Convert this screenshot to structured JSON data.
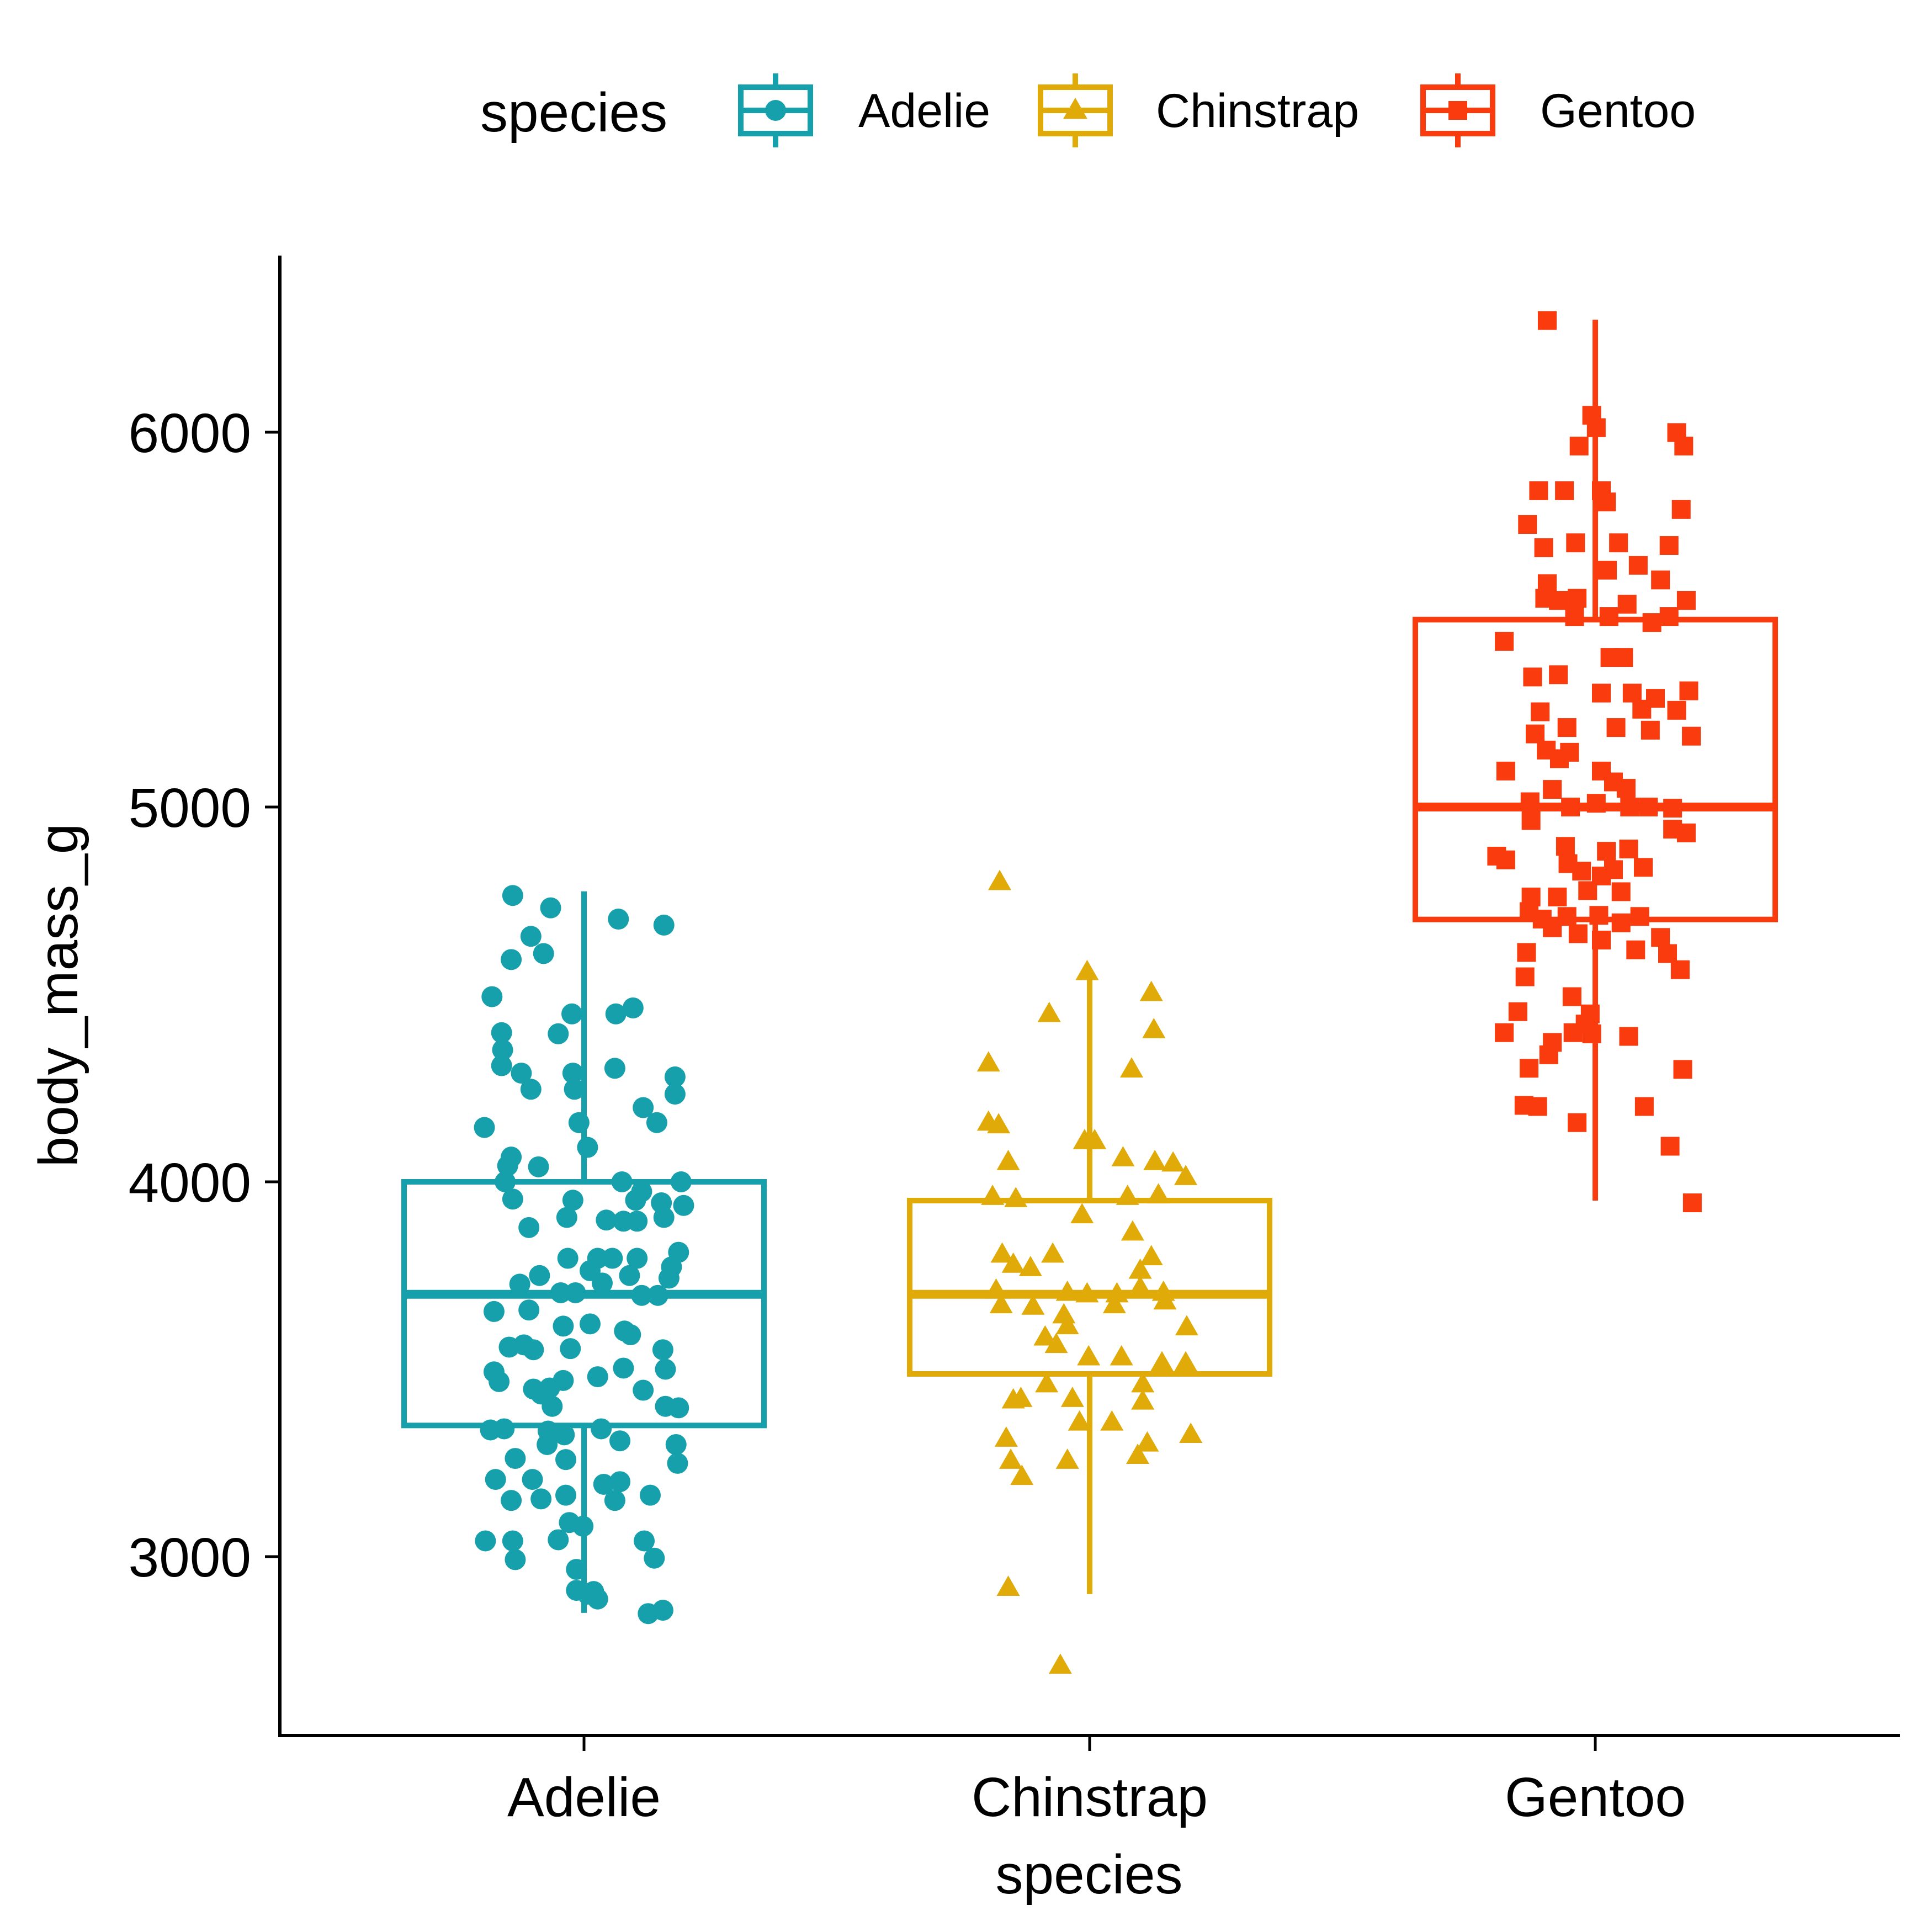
{
  "chart_data": {
    "type": "box+jitter",
    "title": "",
    "xlabel": "species",
    "ylabel": "body_mass_g",
    "ylim": [
      2550,
      6500
    ],
    "yticks": [
      3000,
      4000,
      5000,
      6000
    ],
    "ytick_labels": [
      "3000",
      "4000",
      "5000",
      "6000"
    ],
    "categories": [
      "Adelie",
      "Chinstrap",
      "Gentoo"
    ],
    "grid": false,
    "legend": {
      "title": "species",
      "position": "top",
      "entries": [
        "Adelie",
        "Chinstrap",
        "Gentoo"
      ]
    },
    "series": [
      {
        "name": "Adelie",
        "color": "#16A0AC",
        "shape": "circle",
        "box": {
          "lower_whisker": 2850,
          "q1": 3350,
          "median": 3700,
          "q3": 4000,
          "upper_whisker": 4775
        },
        "points": [
          [
            -0.141,
            4764
          ],
          [
            -0.066,
            4731
          ],
          [
            0.068,
            4701
          ],
          [
            0.158,
            4685
          ],
          [
            -0.105,
            4655
          ],
          [
            -0.08,
            4609
          ],
          [
            -0.144,
            4593
          ],
          [
            -0.182,
            4494
          ],
          [
            0.097,
            4464
          ],
          [
            0.063,
            4448
          ],
          [
            -0.024,
            4448
          ],
          [
            -0.163,
            4398
          ],
          [
            -0.051,
            4395
          ],
          [
            -0.161,
            4352
          ],
          [
            -0.163,
            4310
          ],
          [
            -0.124,
            4290
          ],
          [
            0.061,
            4303
          ],
          [
            -0.022,
            4290
          ],
          [
            0.18,
            4280
          ],
          [
            -0.105,
            4247
          ],
          [
            -0.019,
            4247
          ],
          [
            0.18,
            4234
          ],
          [
            0.117,
            4198
          ],
          [
            0.144,
            4158
          ],
          [
            -0.197,
            4145
          ],
          [
            -0.01,
            4158
          ],
          [
            0.007,
            4092
          ],
          [
            -0.144,
            4066
          ],
          [
            -0.151,
            4043
          ],
          [
            -0.09,
            4040
          ],
          [
            -0.156,
            4000
          ],
          [
            0.075,
            4000
          ],
          [
            0.192,
            4000
          ],
          [
            0.114,
            3974
          ],
          [
            -0.141,
            3954
          ],
          [
            -0.022,
            3951
          ],
          [
            0.102,
            3951
          ],
          [
            0.153,
            3944
          ],
          [
            0.197,
            3937
          ],
          [
            -0.034,
            3905
          ],
          [
            0.044,
            3898
          ],
          [
            0.158,
            3905
          ],
          [
            -0.109,
            3878
          ],
          [
            0.078,
            3895
          ],
          [
            0.105,
            3895
          ],
          [
            0.187,
            3812
          ],
          [
            -0.032,
            3796
          ],
          [
            0.027,
            3796
          ],
          [
            0.056,
            3796
          ],
          [
            0.105,
            3796
          ],
          [
            0.173,
            3773
          ],
          [
            -0.088,
            3750
          ],
          [
            0.012,
            3763
          ],
          [
            0.09,
            3750
          ],
          [
            0.168,
            3743
          ],
          [
            -0.127,
            3727
          ],
          [
            0.036,
            3730
          ],
          [
            -0.046,
            3704
          ],
          [
            -0.017,
            3704
          ],
          [
            0.114,
            3697
          ],
          [
            0.146,
            3697
          ],
          [
            -0.178,
            3654
          ],
          [
            -0.109,
            3658
          ],
          [
            -0.041,
            3615
          ],
          [
            0.012,
            3621
          ],
          [
            0.08,
            3602
          ],
          [
            0.092,
            3592
          ],
          [
            -0.148,
            3559
          ],
          [
            -0.119,
            3565
          ],
          [
            -0.1,
            3552
          ],
          [
            -0.027,
            3555
          ],
          [
            0.156,
            3552
          ],
          [
            0.078,
            3503
          ],
          [
            0.161,
            3500
          ],
          [
            -0.178,
            3493
          ],
          [
            -0.168,
            3467
          ],
          [
            0.027,
            3480
          ],
          [
            -0.041,
            3470
          ],
          [
            -0.1,
            3447
          ],
          [
            -0.068,
            3450
          ],
          [
            -0.085,
            3434
          ],
          [
            0.117,
            3444
          ],
          [
            0.161,
            3401
          ],
          [
            0.187,
            3397
          ],
          [
            -0.063,
            3401
          ],
          [
            -0.185,
            3338
          ],
          [
            -0.158,
            3341
          ],
          [
            0.034,
            3341
          ],
          [
            -0.071,
            3335
          ],
          [
            -0.039,
            3325
          ],
          [
            0.071,
            3309
          ],
          [
            0.182,
            3299
          ],
          [
            -0.073,
            3299
          ],
          [
            -0.136,
            3262
          ],
          [
            -0.036,
            3259
          ],
          [
            0.185,
            3249
          ],
          [
            -0.175,
            3206
          ],
          [
            -0.102,
            3206
          ],
          [
            0.039,
            3193
          ],
          [
            0.071,
            3200
          ],
          [
            -0.036,
            3164
          ],
          [
            0.131,
            3164
          ],
          [
            -0.144,
            3150
          ],
          [
            -0.085,
            3154
          ],
          [
            0.061,
            3150
          ],
          [
            -0.029,
            3091
          ],
          [
            -0.002,
            3081
          ],
          [
            -0.195,
            3042
          ],
          [
            -0.141,
            3042
          ],
          [
            -0.051,
            3045
          ],
          [
            0.119,
            3042
          ],
          [
            -0.136,
            2992
          ],
          [
            0.139,
            2996
          ],
          [
            -0.015,
            2966
          ],
          [
            -0.015,
            2910
          ],
          [
            0.019,
            2907
          ],
          [
            0.007,
            2900
          ],
          [
            0.027,
            2887
          ],
          [
            0.127,
            2848
          ],
          [
            0.156,
            2857
          ]
        ]
      },
      {
        "name": "Chinstrap",
        "color": "#E0AA08",
        "shape": "triangle",
        "box": {
          "lower_whisker": 2900,
          "q1": 3487.5,
          "median": 3700,
          "q3": 3950,
          "upper_whisker": 4550
        },
        "points": [
          [
            -0.178,
            4800
          ],
          [
            -0.005,
            4560
          ],
          [
            0.122,
            4504
          ],
          [
            -0.08,
            4448
          ],
          [
            0.127,
            4405
          ],
          [
            -0.2,
            4316
          ],
          [
            0.083,
            4300
          ],
          [
            -0.2,
            4158
          ],
          [
            -0.18,
            4151
          ],
          [
            -0.01,
            4109
          ],
          [
            0.01,
            4109
          ],
          [
            -0.161,
            4053
          ],
          [
            0.066,
            4063
          ],
          [
            0.129,
            4053
          ],
          [
            0.165,
            4049
          ],
          [
            0.19,
            4013
          ],
          [
            -0.192,
            3960
          ],
          [
            -0.146,
            3954
          ],
          [
            0.075,
            3960
          ],
          [
            0.136,
            3964
          ],
          [
            -0.015,
            3911
          ],
          [
            0.085,
            3865
          ],
          [
            -0.173,
            3806
          ],
          [
            -0.073,
            3806
          ],
          [
            0.122,
            3799
          ],
          [
            -0.151,
            3779
          ],
          [
            -0.117,
            3770
          ],
          [
            0.1,
            3763
          ],
          [
            -0.185,
            3710
          ],
          [
            -0.044,
            3704
          ],
          [
            -0.005,
            3700
          ],
          [
            0.054,
            3700
          ],
          [
            0.1,
            3717
          ],
          [
            0.146,
            3704
          ],
          [
            -0.175,
            3671
          ],
          [
            -0.112,
            3667
          ],
          [
            -0.051,
            3644
          ],
          [
            0.049,
            3671
          ],
          [
            0.149,
            3681
          ],
          [
            0.192,
            3612
          ],
          [
            -0.044,
            3615
          ],
          [
            -0.088,
            3585
          ],
          [
            -0.066,
            3565
          ],
          [
            -0.002,
            3532
          ],
          [
            0.063,
            3532
          ],
          [
            0.143,
            3516
          ],
          [
            0.19,
            3516
          ],
          [
            -0.085,
            3460
          ],
          [
            0.105,
            3460
          ],
          [
            -0.151,
            3417
          ],
          [
            -0.136,
            3421
          ],
          [
            -0.034,
            3421
          ],
          [
            0.105,
            3414
          ],
          [
            -0.02,
            3358
          ],
          [
            0.044,
            3358
          ],
          [
            0.2,
            3325
          ],
          [
            -0.165,
            3315
          ],
          [
            0.114,
            3302
          ],
          [
            0.095,
            3269
          ],
          [
            -0.156,
            3256
          ],
          [
            -0.044,
            3256
          ],
          [
            -0.134,
            3213
          ],
          [
            -0.161,
            2917
          ],
          [
            -0.058,
            2709
          ]
        ]
      },
      {
        "name": "Gentoo",
        "color": "#FA3B0E",
        "shape": "square",
        "box": {
          "lower_whisker": 3950,
          "q1": 4700,
          "median": 5000,
          "q3": 5500,
          "upper_whisker": 6300
        },
        "points": [
          [
            -0.095,
            6298
          ],
          [
            -0.007,
            6045
          ],
          [
            0.002,
            6012
          ],
          [
            -0.032,
            5963
          ],
          [
            0.161,
            5999
          ],
          [
            0.175,
            5963
          ],
          [
            -0.112,
            5844
          ],
          [
            -0.061,
            5844
          ],
          [
            0.012,
            5844
          ],
          [
            0.022,
            5814
          ],
          [
            0.17,
            5794
          ],
          [
            -0.134,
            5754
          ],
          [
            -0.039,
            5705
          ],
          [
            0.046,
            5705
          ],
          [
            0.146,
            5698
          ],
          [
            -0.102,
            5692
          ],
          [
            0.085,
            5645
          ],
          [
            0.024,
            5632
          ],
          [
            0.129,
            5606
          ],
          [
            -0.095,
            5596
          ],
          [
            -0.1,
            5557
          ],
          [
            -0.036,
            5557
          ],
          [
            -0.073,
            5551
          ],
          [
            0.063,
            5541
          ],
          [
            0.18,
            5551
          ],
          [
            0.027,
            5508
          ],
          [
            0.146,
            5508
          ],
          [
            0.112,
            5492
          ],
          [
            -0.041,
            5508
          ],
          [
            -0.18,
            5442
          ],
          [
            0.029,
            5399
          ],
          [
            0.056,
            5399
          ],
          [
            -0.124,
            5347
          ],
          [
            -0.073,
            5353
          ],
          [
            0.012,
            5304
          ],
          [
            0.073,
            5304
          ],
          [
            0.185,
            5310
          ],
          [
            0.119,
            5290
          ],
          [
            0.161,
            5258
          ],
          [
            -0.109,
            5254
          ],
          [
            0.092,
            5261
          ],
          [
            -0.056,
            5212
          ],
          [
            0.041,
            5212
          ],
          [
            0.109,
            5205
          ],
          [
            -0.119,
            5195
          ],
          [
            0.19,
            5189
          ],
          [
            -0.097,
            5152
          ],
          [
            -0.051,
            5146
          ],
          [
            -0.071,
            5129
          ],
          [
            -0.177,
            5096
          ],
          [
            0.012,
            5096
          ],
          [
            0.036,
            5067
          ],
          [
            0.061,
            5050
          ],
          [
            -0.085,
            5047
          ],
          [
            -0.129,
            5014
          ],
          [
            -0.049,
            5000
          ],
          [
            0.002,
            5010
          ],
          [
            0.068,
            5000
          ],
          [
            0.105,
            5000
          ],
          [
            0.153,
            4997
          ],
          [
            -0.127,
            4964
          ],
          [
            0.18,
            4931
          ],
          [
            0.153,
            4941
          ],
          [
            -0.195,
            4869
          ],
          [
            -0.177,
            4859
          ],
          [
            -0.059,
            4895
          ],
          [
            0.022,
            4882
          ],
          [
            0.066,
            4888
          ],
          [
            -0.054,
            4849
          ],
          [
            -0.027,
            4829
          ],
          [
            0.012,
            4816
          ],
          [
            0.036,
            4833
          ],
          [
            0.095,
            4839
          ],
          [
            -0.127,
            4760
          ],
          [
            -0.075,
            4760
          ],
          [
            -0.015,
            4777
          ],
          [
            0.051,
            4774
          ],
          [
            -0.131,
            4721
          ],
          [
            -0.105,
            4701
          ],
          [
            -0.056,
            4708
          ],
          [
            0.007,
            4711
          ],
          [
            0.051,
            4691
          ],
          [
            0.088,
            4708
          ],
          [
            -0.085,
            4678
          ],
          [
            -0.034,
            4662
          ],
          [
            0.012,
            4645
          ],
          [
            0.129,
            4652
          ],
          [
            0.08,
            4619
          ],
          [
            0.143,
            4609
          ],
          [
            -0.136,
            4612
          ],
          [
            -0.139,
            4547
          ],
          [
            0.168,
            4566
          ],
          [
            -0.046,
            4494
          ],
          [
            -0.153,
            4454
          ],
          [
            -0.18,
            4398
          ],
          [
            -0.01,
            4448
          ],
          [
            -0.02,
            4421
          ],
          [
            -0.044,
            4398
          ],
          [
            -0.007,
            4395
          ],
          [
            0.066,
            4388
          ],
          [
            -0.085,
            4372
          ],
          [
            -0.131,
            4303
          ],
          [
            -0.092,
            4339
          ],
          [
            0.173,
            4300
          ],
          [
            -0.141,
            4204
          ],
          [
            -0.114,
            4201
          ],
          [
            0.097,
            4201
          ],
          [
            -0.036,
            4158
          ],
          [
            0.148,
            4095
          ],
          [
            0.192,
            3944
          ]
        ]
      }
    ]
  }
}
